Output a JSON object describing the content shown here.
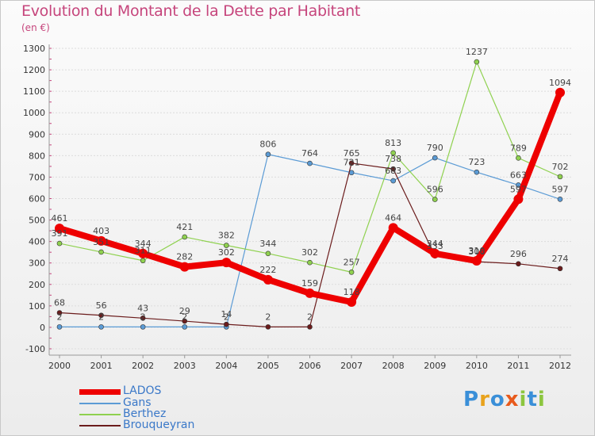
{
  "header": {
    "title": "Evolution du Montant de la Dette par Habitant",
    "subtitle": "(en €)"
  },
  "logo": {
    "text": "Proxiti"
  },
  "colors": {
    "LADOS": "#ee0000",
    "Gans": "#5b9bd5",
    "Berthez": "#8fd14f",
    "Brouqueyran": "#6b1c1c",
    "title": "#c6457c"
  },
  "chart_data": {
    "type": "line",
    "title": "Evolution du Montant de la Dette par Habitant",
    "subtitle": "(en €)",
    "xlabel": "",
    "ylabel": "",
    "categories": [
      "2000",
      "2001",
      "2002",
      "2003",
      "2004",
      "2005",
      "2006",
      "2007",
      "2008",
      "2009",
      "2010",
      "2011",
      "2012"
    ],
    "ylim": [
      -100,
      1300
    ],
    "yticks": [
      -100,
      0,
      100,
      200,
      300,
      400,
      500,
      600,
      700,
      800,
      900,
      1000,
      1100,
      1200,
      1300
    ],
    "grid": "horizontal",
    "legend_position": "bottom-left",
    "series": [
      {
        "name": "LADOS",
        "values": [
          461,
          403,
          344,
          282,
          302,
          222,
          159,
          118,
          464,
          344,
          310,
          597,
          1094
        ]
      },
      {
        "name": "Gans",
        "values": [
          2,
          2,
          2,
          2,
          2,
          806,
          764,
          721,
          683,
          790,
          723,
          663,
          597
        ]
      },
      {
        "name": "Berthez",
        "values": [
          391,
          351,
          311,
          421,
          382,
          344,
          302,
          257,
          813,
          596,
          1237,
          789,
          702
        ]
      },
      {
        "name": "Brouqueyran",
        "values": [
          68,
          56,
          43,
          29,
          14,
          2,
          2,
          765,
          738,
          333,
          306,
          296,
          274
        ]
      }
    ]
  }
}
